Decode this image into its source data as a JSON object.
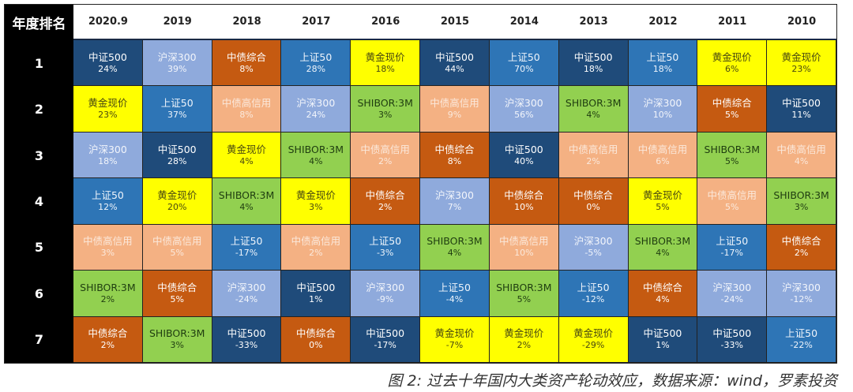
{
  "chart_data": {
    "type": "table",
    "corner_label": "年度排名",
    "columns": [
      "2020.9",
      "2019",
      "2018",
      "2017",
      "2016",
      "2015",
      "2014",
      "2013",
      "2012",
      "2011",
      "2010"
    ],
    "ranks": [
      "1",
      "2",
      "3",
      "4",
      "5",
      "6",
      "7"
    ],
    "asset_colors": {
      "中证500": {
        "bg": "#1f4b7a",
        "fg": "#ffffff"
      },
      "沪深300": {
        "bg": "#8faadc",
        "fg": "#f2f5fb"
      },
      "中债综合": {
        "bg": "#c55a11",
        "fg": "#ffffff"
      },
      "上证50": {
        "bg": "#2e75b6",
        "fg": "#eef4fb"
      },
      "黄金现价": {
        "bg": "#ffff00",
        "fg": "#4a4a10"
      },
      "中债高信用": {
        "bg": "#f4b183",
        "fg": "#fbe9dc"
      },
      "SHIBOR:3M": {
        "bg": "#92d050",
        "fg": "#1f3d10"
      }
    },
    "rows": [
      [
        [
          "中证500",
          "24%"
        ],
        [
          "沪深300",
          "39%"
        ],
        [
          "中债综合",
          "8%"
        ],
        [
          "上证50",
          "28%"
        ],
        [
          "黄金现价",
          "18%"
        ],
        [
          "中证500",
          "44%"
        ],
        [
          "上证50",
          "70%"
        ],
        [
          "中证500",
          "18%"
        ],
        [
          "上证50",
          "18%"
        ],
        [
          "黄金现价",
          "6%"
        ],
        [
          "黄金现价",
          "23%"
        ]
      ],
      [
        [
          "黄金现价",
          "23%"
        ],
        [
          "上证50",
          "37%"
        ],
        [
          "中债高信用",
          "8%"
        ],
        [
          "沪深300",
          "24%"
        ],
        [
          "SHIBOR:3M",
          "3%"
        ],
        [
          "中债高信用",
          "9%"
        ],
        [
          "沪深300",
          "56%"
        ],
        [
          "SHIBOR:3M",
          "4%"
        ],
        [
          "沪深300",
          "10%"
        ],
        [
          "中债综合",
          "5%"
        ],
        [
          "中证500",
          "11%"
        ]
      ],
      [
        [
          "沪深300",
          "18%"
        ],
        [
          "中证500",
          "28%"
        ],
        [
          "黄金现价",
          "4%"
        ],
        [
          "SHIBOR:3M",
          "4%"
        ],
        [
          "中债高信用",
          "2%"
        ],
        [
          "中债综合",
          "8%"
        ],
        [
          "中证500",
          "40%"
        ],
        [
          "中债高信用",
          "2%"
        ],
        [
          "中债高信用",
          "6%"
        ],
        [
          "SHIBOR:3M",
          "5%"
        ],
        [
          "中债高信用",
          "4%"
        ]
      ],
      [
        [
          "上证50",
          "12%"
        ],
        [
          "黄金现价",
          "20%"
        ],
        [
          "SHIBOR:3M",
          "4%"
        ],
        [
          "黄金现价",
          "3%"
        ],
        [
          "中债综合",
          "2%"
        ],
        [
          "沪深300",
          "7%"
        ],
        [
          "中债综合",
          "10%"
        ],
        [
          "中债综合",
          "0%"
        ],
        [
          "黄金现价",
          "5%"
        ],
        [
          "中债高信用",
          "5%"
        ],
        [
          "SHIBOR:3M",
          "3%"
        ]
      ],
      [
        [
          "中债高信用",
          "3%"
        ],
        [
          "中债高信用",
          "5%"
        ],
        [
          "上证50",
          "-17%"
        ],
        [
          "中债高信用",
          "2%"
        ],
        [
          "上证50",
          "-3%"
        ],
        [
          "SHIBOR:3M",
          "4%"
        ],
        [
          "中债高信用",
          "10%"
        ],
        [
          "沪深300",
          "-5%"
        ],
        [
          "SHIBOR:3M",
          "4%"
        ],
        [
          "上证50",
          "-17%"
        ],
        [
          "中债综合",
          "2%"
        ]
      ],
      [
        [
          "SHIBOR:3M",
          "2%"
        ],
        [
          "中债综合",
          "5%"
        ],
        [
          "沪深300",
          "-24%"
        ],
        [
          "中证500",
          "1%"
        ],
        [
          "沪深300",
          "-9%"
        ],
        [
          "上证50",
          "-4%"
        ],
        [
          "SHIBOR:3M",
          "5%"
        ],
        [
          "上证50",
          "-12%"
        ],
        [
          "中债综合",
          "4%"
        ],
        [
          "沪深300",
          "-24%"
        ],
        [
          "沪深300",
          "-12%"
        ]
      ],
      [
        [
          "中债综合",
          "2%"
        ],
        [
          "SHIBOR:3M",
          "3%"
        ],
        [
          "中证500",
          "-33%"
        ],
        [
          "中债综合",
          "0%"
        ],
        [
          "中证500",
          "-17%"
        ],
        [
          "黄金现价",
          "-7%"
        ],
        [
          "黄金现价",
          "2%"
        ],
        [
          "黄金现价",
          "-29%"
        ],
        [
          "中证500",
          "1%"
        ],
        [
          "中证500",
          "-33%"
        ],
        [
          "上证50",
          "-22%"
        ]
      ]
    ],
    "caption": "图 2: 过去十年国内大类资产轮动效应，数据来源：wind，罗素投资"
  }
}
